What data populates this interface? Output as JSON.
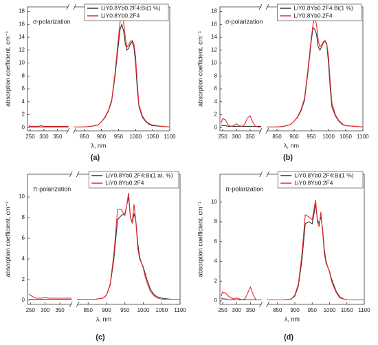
{
  "chart_data": [
    {
      "type": "line",
      "panel_label": "(a)",
      "annotation": "σ-polarization",
      "xlabel": "λ, nm",
      "ylabel": "absorption coefficient, cm⁻¹",
      "legend": "upper right",
      "xlim": [
        240,
        1100
      ],
      "xbreak": [
        390,
        820
      ],
      "xticks": [
        250,
        300,
        350,
        850,
        900,
        950,
        1000,
        1050,
        1100
      ],
      "ylim": [
        -0.5,
        18.7
      ],
      "yticks": [
        0,
        2,
        4,
        6,
        8,
        10,
        12,
        14,
        16,
        18
      ],
      "x": [
        245,
        250,
        260,
        270,
        280,
        290,
        300,
        310,
        320,
        330,
        340,
        350,
        360,
        370,
        380,
        390,
        600,
        820,
        850,
        870,
        890,
        900,
        910,
        920,
        930,
        940,
        950,
        955,
        960,
        965,
        970,
        975,
        980,
        985,
        990,
        995,
        1000,
        1005,
        1010,
        1020,
        1030,
        1040,
        1050,
        1075,
        1100
      ],
      "series": [
        {
          "name": "LiY0.8Yb0.2F4:Bi(1 %)",
          "color": "#333333",
          "values": [
            0.2,
            0.1,
            0.1,
            0.1,
            0.1,
            0.1,
            0.1,
            0.1,
            0.1,
            0.1,
            0.1,
            0.1,
            0.1,
            0.1,
            0.1,
            0.1,
            null,
            0.1,
            0.1,
            0.2,
            0.4,
            0.9,
            1.5,
            2.5,
            4,
            8,
            13,
            15.3,
            16,
            15,
            13,
            12,
            12.3,
            13,
            13.3,
            12.5,
            10,
            6,
            3.2,
            1.6,
            0.9,
            0.5,
            0.3,
            0.2,
            0.1
          ]
        },
        {
          "name": "LiY0.8Yb0.2F4",
          "color": "#e8282b",
          "values": [
            0.3,
            0.2,
            0.2,
            0.2,
            0.2,
            0.3,
            0.2,
            0.2,
            0.2,
            0.2,
            0.2,
            0.2,
            0.2,
            0.2,
            0.2,
            0.2,
            null,
            0.1,
            0.1,
            0.2,
            0.4,
            0.9,
            1.6,
            2.6,
            4.2,
            8.5,
            14,
            16.5,
            17.4,
            16.4,
            14,
            12.5,
            12.8,
            13.4,
            13.5,
            13,
            11,
            7,
            3.5,
            1.8,
            1,
            0.6,
            0.4,
            0.2,
            0.1
          ]
        }
      ]
    },
    {
      "type": "line",
      "panel_label": "(b)",
      "annotation": "σ-polarization",
      "xlabel": "λ, nm",
      "ylabel": "absorption coefficient, cm⁻¹",
      "legend": "upper right",
      "xlim": [
        240,
        1100
      ],
      "xbreak": [
        390,
        820
      ],
      "xticks": [
        250,
        300,
        350,
        850,
        900,
        950,
        1000,
        1050,
        1100
      ],
      "ylim": [
        -0.5,
        18.7
      ],
      "yticks": [
        0,
        2,
        4,
        6,
        8,
        10,
        12,
        14,
        16,
        18
      ],
      "x": [
        245,
        250,
        260,
        270,
        280,
        290,
        300,
        310,
        320,
        330,
        340,
        350,
        360,
        370,
        380,
        390,
        600,
        820,
        850,
        870,
        890,
        900,
        910,
        920,
        930,
        940,
        950,
        955,
        960,
        965,
        970,
        975,
        980,
        985,
        990,
        995,
        1000,
        1005,
        1010,
        1020,
        1030,
        1040,
        1050,
        1075,
        1100
      ],
      "series": [
        {
          "name": "LiY0.8Yb0.2F4:Bi(1 %)",
          "color": "#333333",
          "values": [
            0.4,
            0.3,
            0.3,
            0.2,
            0.2,
            0.2,
            0.2,
            0.2,
            0.2,
            0.2,
            0.2,
            0.2,
            0.2,
            0.2,
            0.2,
            0.2,
            null,
            0.1,
            0.1,
            0.2,
            0.5,
            1,
            1.6,
            2.6,
            4.2,
            8.5,
            13.5,
            15.5,
            15.2,
            14.5,
            12.5,
            12,
            12.5,
            13.2,
            13.4,
            12.8,
            10,
            6,
            3.2,
            1.8,
            1,
            0.5,
            0.3,
            0.2,
            0.1
          ]
        },
        {
          "name": "LiY0.8Yb0.2F4",
          "color": "#e8282b",
          "values": [
            0.8,
            1.4,
            1.2,
            0.4,
            0.2,
            0.3,
            0.6,
            0.3,
            0.2,
            0.5,
            1.5,
            1.8,
            0.8,
            0.2,
            0.1,
            0.1,
            null,
            0.1,
            0.1,
            0.2,
            0.5,
            1,
            1.7,
            2.8,
            4.5,
            9,
            14,
            16,
            16.9,
            16,
            13.5,
            12.5,
            12.8,
            13.3,
            13.5,
            13,
            11,
            7,
            3.8,
            2,
            1.1,
            0.6,
            0.3,
            0.2,
            0.1
          ]
        }
      ]
    },
    {
      "type": "line",
      "panel_label": "(c)",
      "annotation": "π-polarization",
      "xlabel": "λ, nm",
      "ylabel": "absorption coefficient, cm⁻¹",
      "legend": "upper right",
      "xlim": [
        240,
        1100
      ],
      "xbreak": [
        390,
        820
      ],
      "xticks": [
        250,
        300,
        350,
        850,
        900,
        950,
        1000,
        1050,
        1100
      ],
      "ylim": [
        -0.4,
        12.2
      ],
      "yticks": [
        0,
        2,
        4,
        6,
        8,
        10
      ],
      "x": [
        245,
        250,
        260,
        270,
        280,
        290,
        300,
        310,
        320,
        330,
        340,
        350,
        360,
        370,
        380,
        390,
        600,
        820,
        850,
        870,
        890,
        900,
        910,
        920,
        930,
        940,
        950,
        955,
        960,
        965,
        970,
        975,
        980,
        985,
        990,
        995,
        1000,
        1005,
        1010,
        1020,
        1030,
        1040,
        1050,
        1075,
        1100
      ],
      "series": [
        {
          "name": "LiY0.8Yb0.2F4:Bi(1 at. %)",
          "color": "#333333",
          "values": [
            0.1,
            0.1,
            0.1,
            0.1,
            0.1,
            0.1,
            0.1,
            0.1,
            0.1,
            0.1,
            0.1,
            0.1,
            0.1,
            0.1,
            0.1,
            0.1,
            null,
            0.1,
            0.1,
            0.1,
            0.2,
            0.5,
            1.5,
            4,
            7.8,
            8.2,
            8.4,
            9.2,
            10,
            8,
            7.5,
            8.4,
            7.6,
            5.5,
            4.2,
            3.6,
            3.2,
            2.6,
            2,
            1,
            0.5,
            0.3,
            0.2,
            0.1,
            0.1
          ]
        },
        {
          "name": "LiY0.8Yb0.2F4",
          "color": "#e8282b",
          "values": [
            0.6,
            0.5,
            0.3,
            0.2,
            0.2,
            0.2,
            0.3,
            0.2,
            0.2,
            0.2,
            0.2,
            0.2,
            0.2,
            0.2,
            0.2,
            0.2,
            null,
            0.1,
            0.1,
            0.1,
            0.2,
            0.5,
            1.6,
            4.5,
            8.8,
            8.8,
            8.2,
            9.2,
            10.4,
            8,
            7.6,
            9.3,
            7.5,
            5,
            4,
            3.6,
            3.1,
            2.3,
            1.7,
            0.8,
            0.4,
            0.2,
            0.1,
            0.1,
            0.1
          ]
        }
      ]
    },
    {
      "type": "line",
      "panel_label": "(d)",
      "annotation": "π-polarization",
      "xlabel": "λ, nm",
      "ylabel": "absorption coefficient, cm⁻¹",
      "legend": "upper right",
      "xlim": [
        240,
        1100
      ],
      "xbreak": [
        390,
        820
      ],
      "xticks": [
        250,
        300,
        350,
        850,
        900,
        950,
        1000,
        1050,
        1100
      ],
      "ylim": [
        -0.35,
        12.8
      ],
      "yticks": [
        0,
        2,
        4,
        6,
        8,
        10
      ],
      "x": [
        245,
        250,
        260,
        270,
        280,
        290,
        300,
        310,
        320,
        330,
        340,
        350,
        360,
        370,
        380,
        390,
        600,
        820,
        850,
        870,
        890,
        900,
        910,
        920,
        930,
        940,
        950,
        955,
        960,
        965,
        970,
        975,
        980,
        985,
        990,
        995,
        1000,
        1005,
        1010,
        1020,
        1030,
        1040,
        1050,
        1075,
        1100
      ],
      "series": [
        {
          "name": "LiY0.8Yb0.2F4:Bi(1 %)",
          "color": "#333333",
          "values": [
            0.3,
            0.2,
            0.2,
            0.1,
            0.1,
            0.1,
            0.1,
            0.1,
            0.1,
            0.1,
            0.1,
            0.1,
            0.1,
            0.1,
            0.1,
            0.1,
            null,
            0.1,
            0.1,
            0.1,
            0.2,
            0.5,
            1.5,
            4,
            7.8,
            8,
            7.8,
            8.8,
            9.8,
            8.2,
            7.8,
            8.5,
            7.3,
            5.2,
            4,
            3.4,
            3,
            2.3,
            1.8,
            0.9,
            0.4,
            0.2,
            0.1,
            0.1,
            0.1
          ]
        },
        {
          "name": "LiY0.8Yb0.2F4",
          "color": "#e8282b",
          "values": [
            0.5,
            0.9,
            0.8,
            0.5,
            0.3,
            0.2,
            0.3,
            0.2,
            0.1,
            0.2,
            0.8,
            1.4,
            0.6,
            0.1,
            0.1,
            0.1,
            null,
            0.1,
            0.1,
            0.1,
            0.2,
            0.6,
            1.7,
            4.6,
            8.7,
            8.5,
            8.2,
            9.3,
            10.2,
            8,
            7.5,
            9,
            7,
            4.8,
            3.8,
            3.4,
            2.9,
            2.1,
            1.6,
            0.8,
            0.3,
            0.2,
            0.1,
            0.1,
            0.1
          ]
        }
      ]
    }
  ]
}
